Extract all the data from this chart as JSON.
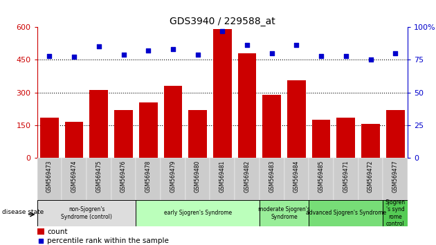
{
  "title": "GDS3940 / 229588_at",
  "samples": [
    "GSM569473",
    "GSM569474",
    "GSM569475",
    "GSM569476",
    "GSM569478",
    "GSM569479",
    "GSM569480",
    "GSM569481",
    "GSM569482",
    "GSM569483",
    "GSM569484",
    "GSM569485",
    "GSM569471",
    "GSM569472",
    "GSM569477"
  ],
  "counts": [
    185,
    165,
    310,
    220,
    255,
    330,
    220,
    590,
    480,
    290,
    355,
    175,
    185,
    155,
    220
  ],
  "percentiles": [
    78,
    77,
    85,
    79,
    82,
    83,
    79,
    97,
    86,
    80,
    86,
    78,
    78,
    75,
    80
  ],
  "bar_color": "#cc0000",
  "dot_color": "#0000cc",
  "ylim_left": [
    0,
    600
  ],
  "yticks_left": [
    0,
    150,
    300,
    450,
    600
  ],
  "yticks_right": [
    0,
    25,
    50,
    75,
    100
  ],
  "ytick_labels_right": [
    "0",
    "25",
    "50",
    "75",
    "100%"
  ],
  "groups": [
    {
      "label": "non-Sjogren's\nSyndrome (control)",
      "start": 0,
      "end": 4,
      "color": "#dddddd"
    },
    {
      "label": "early Sjogren's Syndrome",
      "start": 4,
      "end": 9,
      "color": "#bbffbb"
    },
    {
      "label": "moderate Sjogren's\nSyndrome",
      "start": 9,
      "end": 11,
      "color": "#99ee99"
    },
    {
      "label": "advanced Sjogren's Syndrome",
      "start": 11,
      "end": 14,
      "color": "#77dd77"
    },
    {
      "label": "Sjogren\n's synd\nrome\ncontrol",
      "start": 14,
      "end": 15,
      "color": "#55cc55"
    }
  ],
  "xticklabel_bg": "#cccccc",
  "background_color": "#ffffff"
}
